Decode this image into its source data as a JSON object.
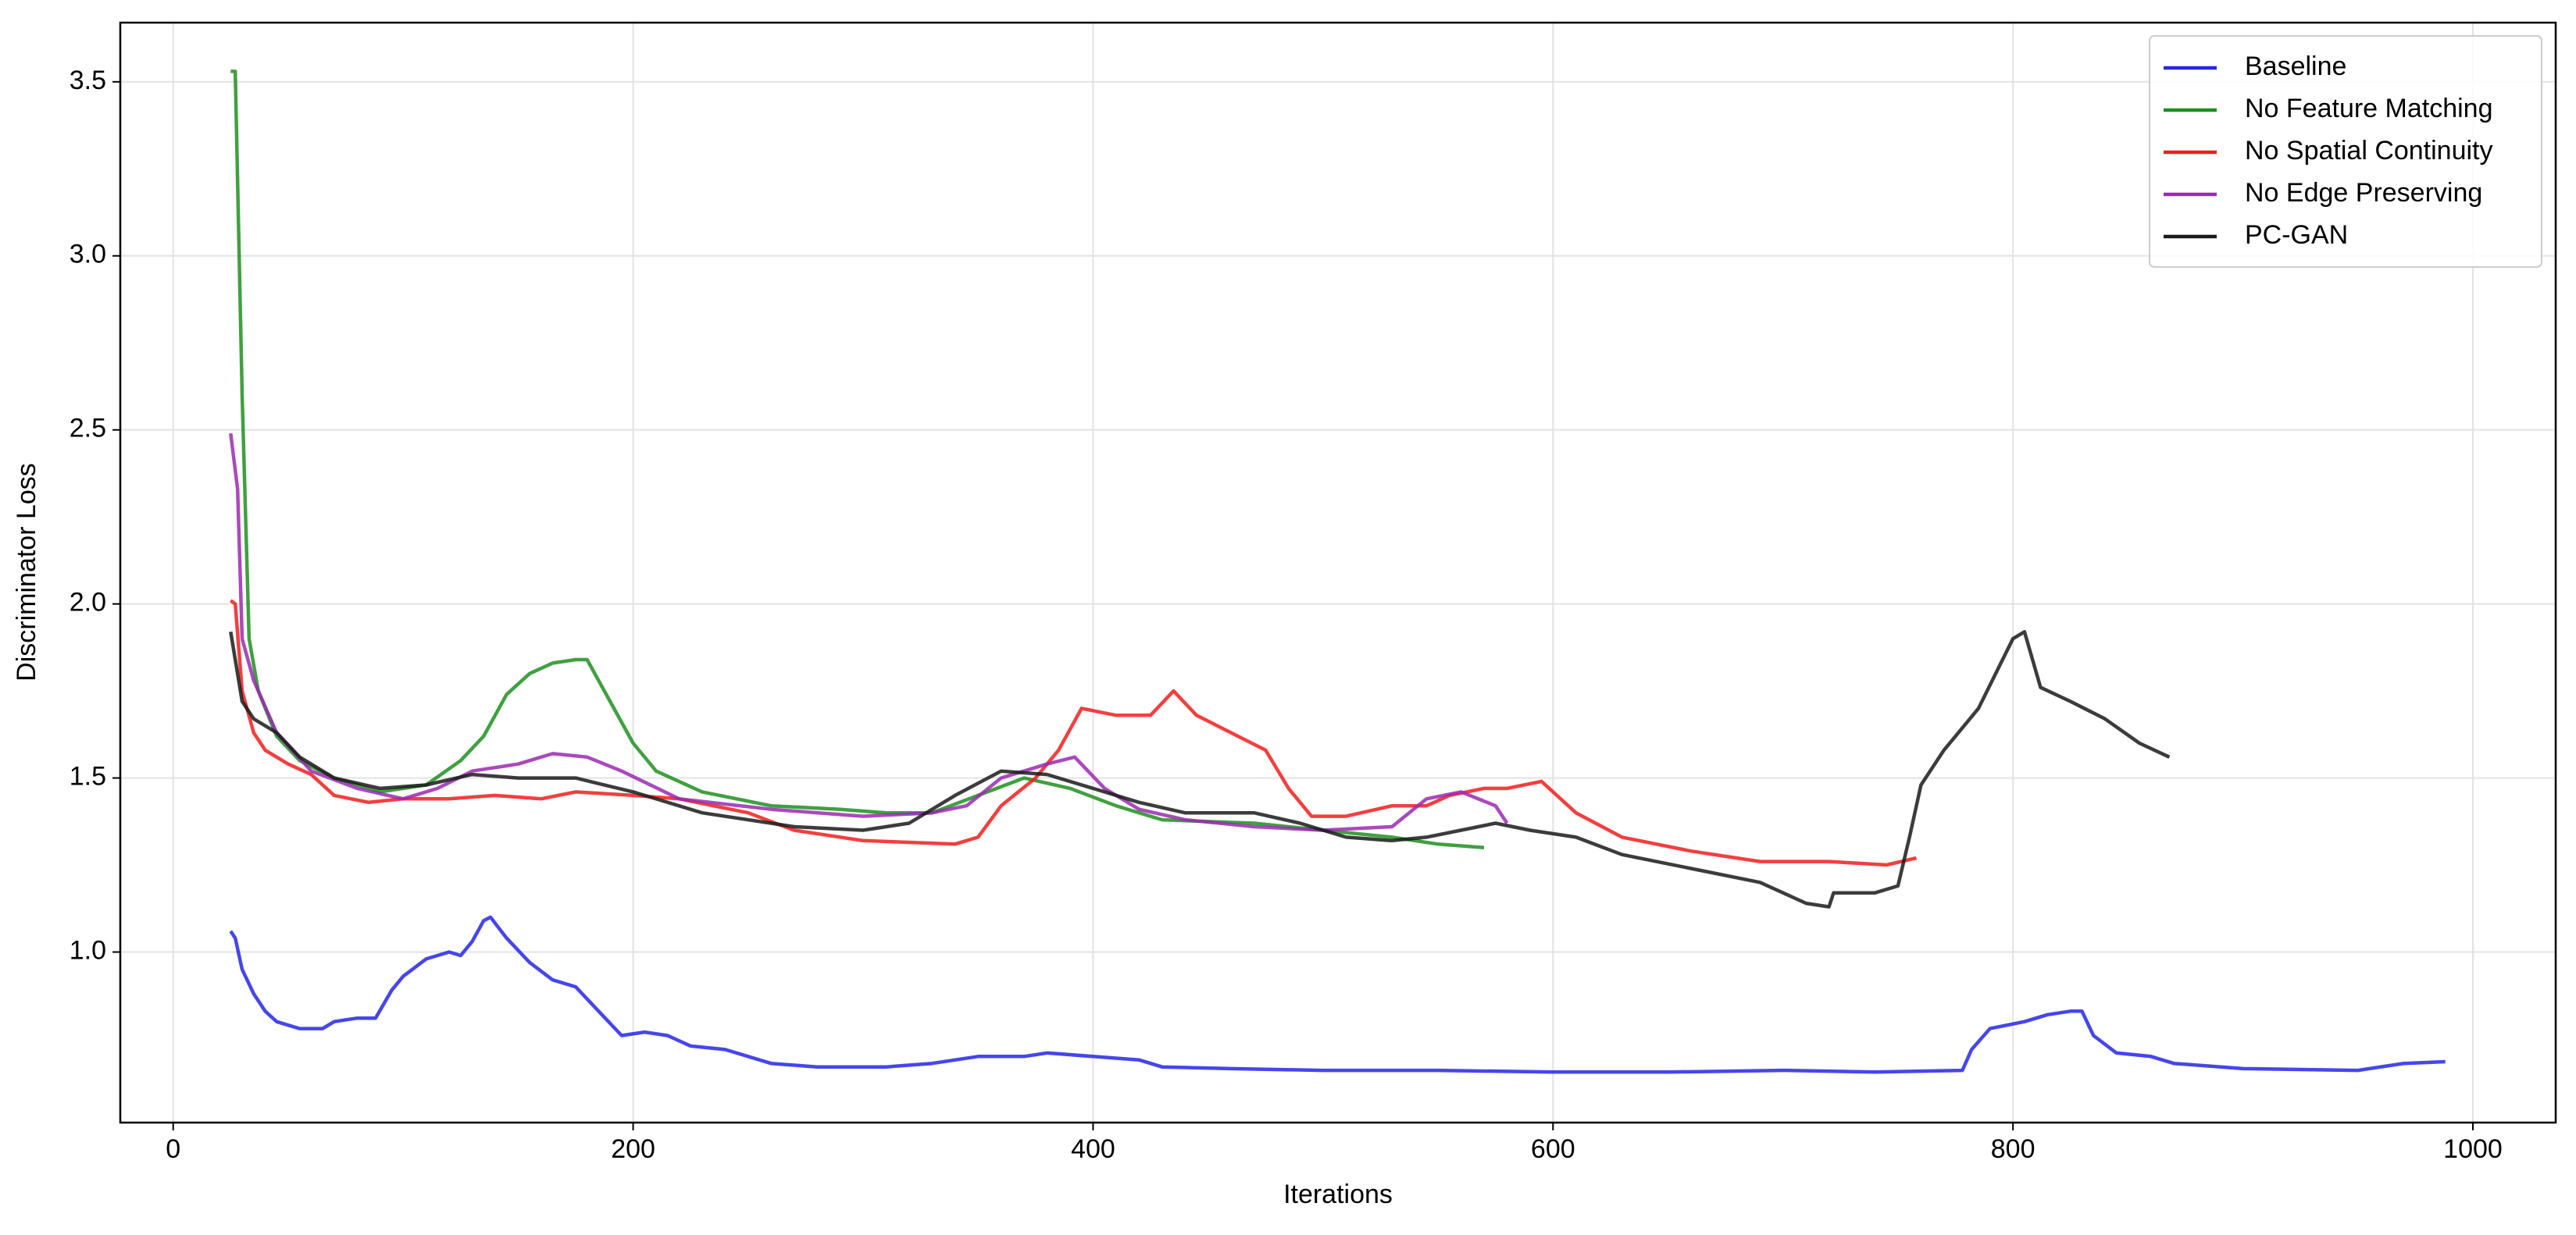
{
  "chart_data": {
    "type": "line",
    "xlabel": "Iterations",
    "ylabel": "Discriminator Loss",
    "xlim": [
      -23,
      1036
    ],
    "ylim": [
      0.51,
      3.67
    ],
    "xticks": [
      0,
      200,
      400,
      600,
      800,
      1000
    ],
    "yticks": [
      {
        "value": 1,
        "label": "1.0"
      },
      1.5,
      {
        "value": 2,
        "label": "2.0"
      },
      2.5,
      {
        "value": 3,
        "label": "3.0"
      },
      3.5
    ],
    "grid": true,
    "legend": "upper right",
    "series": [
      {
        "name": "Baseline",
        "color": "#2626e8",
        "x": [
          25,
          27,
          30,
          35,
          40,
          45,
          50,
          55,
          65,
          70,
          80,
          88,
          95,
          100,
          110,
          120,
          125,
          130,
          135,
          138,
          145,
          155,
          165,
          175,
          185,
          195,
          205,
          215,
          225,
          240,
          260,
          280,
          310,
          330,
          350,
          370,
          380,
          400,
          420,
          430,
          460,
          500,
          550,
          600,
          650,
          700,
          740,
          778,
          782,
          790,
          805,
          815,
          825,
          830,
          835,
          845,
          860,
          870,
          900,
          950,
          970,
          988
        ],
        "values": [
          1.06,
          1.04,
          0.95,
          0.88,
          0.83,
          0.8,
          0.79,
          0.78,
          0.78,
          0.8,
          0.81,
          0.81,
          0.89,
          0.93,
          0.98,
          1.0,
          0.99,
          1.03,
          1.09,
          1.1,
          1.04,
          0.97,
          0.92,
          0.9,
          0.83,
          0.76,
          0.77,
          0.76,
          0.73,
          0.72,
          0.68,
          0.67,
          0.67,
          0.68,
          0.7,
          0.7,
          0.71,
          0.7,
          0.69,
          0.67,
          0.665,
          0.66,
          0.66,
          0.655,
          0.655,
          0.66,
          0.655,
          0.66,
          0.72,
          0.78,
          0.8,
          0.82,
          0.83,
          0.83,
          0.76,
          0.71,
          0.7,
          0.68,
          0.665,
          0.66,
          0.68,
          0.685
        ]
      },
      {
        "name": "No Feature Matching",
        "color": "#1f8f1f",
        "x": [
          25,
          27,
          30,
          33,
          37,
          45,
          55,
          70,
          90,
          110,
          125,
          135,
          145,
          155,
          165,
          175,
          180,
          190,
          200,
          210,
          230,
          260,
          290,
          310,
          330,
          350,
          370,
          390,
          410,
          430,
          470,
          500,
          530,
          550,
          570
        ],
        "values": [
          3.53,
          3.53,
          2.6,
          1.9,
          1.75,
          1.62,
          1.55,
          1.5,
          1.46,
          1.48,
          1.55,
          1.62,
          1.74,
          1.8,
          1.83,
          1.84,
          1.84,
          1.72,
          1.6,
          1.52,
          1.46,
          1.42,
          1.41,
          1.4,
          1.4,
          1.45,
          1.5,
          1.47,
          1.42,
          1.38,
          1.37,
          1.35,
          1.33,
          1.31,
          1.3
        ]
      },
      {
        "name": "No Spatial Continuity",
        "color": "#f01d1d",
        "x": [
          25,
          27,
          30,
          35,
          40,
          50,
          60,
          70,
          85,
          100,
          120,
          140,
          160,
          175,
          200,
          220,
          250,
          270,
          300,
          340,
          350,
          360,
          375,
          385,
          395,
          410,
          425,
          435,
          445,
          460,
          475,
          485,
          495,
          510,
          530,
          545,
          555,
          570,
          580,
          595,
          610,
          630,
          660,
          690,
          720,
          745,
          758
        ],
        "values": [
          2.01,
          2.0,
          1.75,
          1.63,
          1.58,
          1.54,
          1.51,
          1.45,
          1.43,
          1.44,
          1.44,
          1.45,
          1.44,
          1.46,
          1.45,
          1.44,
          1.4,
          1.35,
          1.32,
          1.31,
          1.33,
          1.42,
          1.5,
          1.58,
          1.7,
          1.68,
          1.68,
          1.75,
          1.68,
          1.63,
          1.58,
          1.47,
          1.39,
          1.39,
          1.42,
          1.42,
          1.45,
          1.47,
          1.47,
          1.49,
          1.4,
          1.33,
          1.29,
          1.26,
          1.26,
          1.25,
          1.27
        ]
      },
      {
        "name": "No Edge Preserving",
        "color": "#9a2ab0",
        "x": [
          25,
          28,
          30,
          35,
          45,
          60,
          80,
          100,
          115,
          130,
          150,
          165,
          180,
          195,
          220,
          260,
          300,
          330,
          345,
          360,
          380,
          392,
          405,
          420,
          440,
          470,
          500,
          530,
          545,
          560,
          575,
          580
        ],
        "values": [
          2.49,
          2.33,
          1.9,
          1.78,
          1.63,
          1.52,
          1.47,
          1.44,
          1.47,
          1.52,
          1.54,
          1.57,
          1.56,
          1.52,
          1.44,
          1.41,
          1.39,
          1.4,
          1.42,
          1.5,
          1.54,
          1.56,
          1.47,
          1.41,
          1.38,
          1.36,
          1.35,
          1.36,
          1.44,
          1.46,
          1.42,
          1.37
        ]
      },
      {
        "name": "PC-GAN",
        "color": "#1a1a1a",
        "x": [
          25,
          30,
          35,
          45,
          55,
          70,
          90,
          110,
          130,
          150,
          175,
          200,
          230,
          270,
          300,
          320,
          340,
          360,
          380,
          400,
          420,
          440,
          470,
          490,
          510,
          530,
          545,
          560,
          575,
          590,
          610,
          630,
          660,
          690,
          710,
          720,
          722,
          740,
          750,
          755,
          760,
          770,
          785,
          800,
          805,
          812,
          825,
          840,
          855,
          868
        ],
        "values": [
          1.92,
          1.72,
          1.67,
          1.63,
          1.56,
          1.5,
          1.47,
          1.48,
          1.51,
          1.5,
          1.5,
          1.46,
          1.4,
          1.36,
          1.35,
          1.37,
          1.45,
          1.52,
          1.51,
          1.47,
          1.43,
          1.4,
          1.4,
          1.37,
          1.33,
          1.32,
          1.33,
          1.35,
          1.37,
          1.35,
          1.33,
          1.28,
          1.24,
          1.2,
          1.14,
          1.13,
          1.17,
          1.17,
          1.19,
          1.33,
          1.48,
          1.58,
          1.7,
          1.9,
          1.92,
          1.76,
          1.72,
          1.67,
          1.6,
          1.56
        ]
      }
    ]
  }
}
